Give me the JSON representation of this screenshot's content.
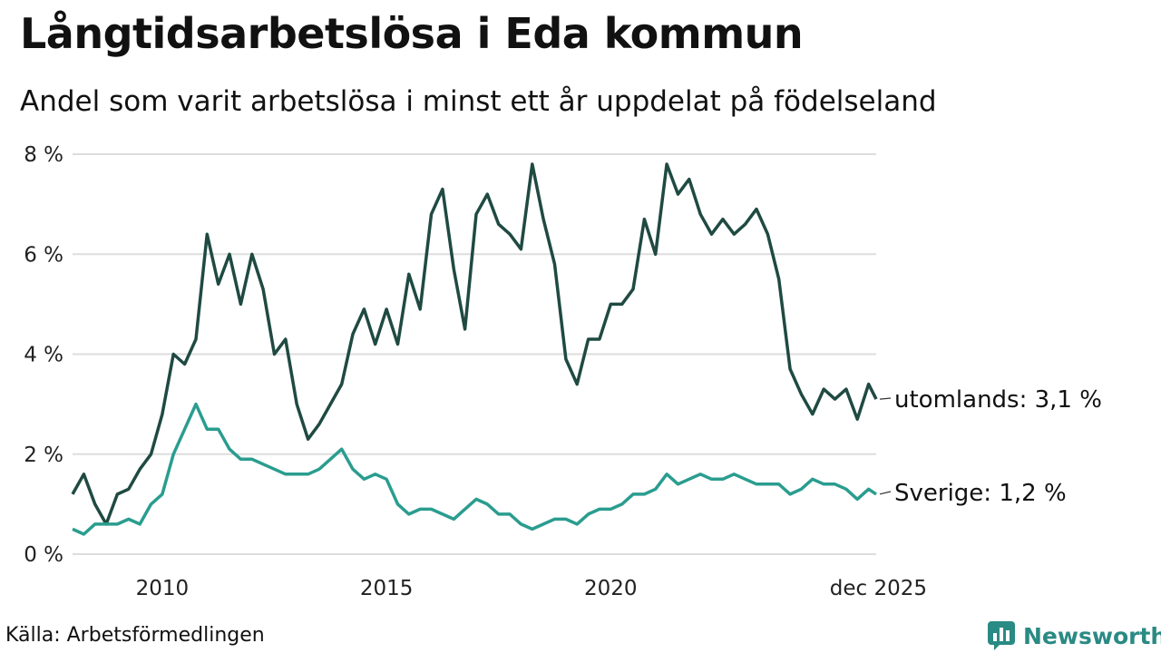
{
  "title": "Långtidsarbetslösa i Eda kommun",
  "subtitle": "Andel som varit arbetslösa i minst ett år uppdelat på födelseland",
  "source": "Källa: Arbetsförmedlingen",
  "brand": "Newsworthy",
  "colors": {
    "utomlands": "#1f4a42",
    "sverige": "#2a9d8f",
    "grid": "#dddddd",
    "brand": "#2a8a84"
  },
  "chart_data": {
    "type": "line",
    "title": "Långtidsarbetslösa i Eda kommun",
    "xlabel": "",
    "ylabel": "",
    "ylim": [
      0,
      8
    ],
    "xlim": [
      2008.0,
      2025.92
    ],
    "yticks": [
      "0 %",
      "2 %",
      "4 %",
      "6 %",
      "8 %"
    ],
    "xticks": [
      {
        "x": 2010,
        "label": "2010"
      },
      {
        "x": 2015,
        "label": "2015"
      },
      {
        "x": 2020,
        "label": "2020"
      },
      {
        "x": 2025.92,
        "label": "dec 2025"
      }
    ],
    "legend_placement": "end-of-line labels",
    "series": [
      {
        "name": "utomlands",
        "end_label": "utomlands: 3,1 %",
        "x": [
          2008.0,
          2008.25,
          2008.5,
          2008.75,
          2009.0,
          2009.25,
          2009.5,
          2009.75,
          2010.0,
          2010.25,
          2010.5,
          2010.75,
          2011.0,
          2011.25,
          2011.5,
          2011.75,
          2012.0,
          2012.25,
          2012.5,
          2012.75,
          2013.0,
          2013.25,
          2013.5,
          2013.75,
          2014.0,
          2014.25,
          2014.5,
          2014.75,
          2015.0,
          2015.25,
          2015.5,
          2015.75,
          2016.0,
          2016.25,
          2016.5,
          2016.75,
          2017.0,
          2017.25,
          2017.5,
          2017.75,
          2018.0,
          2018.25,
          2018.5,
          2018.75,
          2019.0,
          2019.25,
          2019.5,
          2019.75,
          2020.0,
          2020.25,
          2020.5,
          2020.75,
          2021.0,
          2021.25,
          2021.5,
          2021.75,
          2022.0,
          2022.25,
          2022.5,
          2022.75,
          2023.0,
          2023.25,
          2023.5,
          2023.75,
          2024.0,
          2024.25,
          2024.5,
          2024.75,
          2025.0,
          2025.25,
          2025.5,
          2025.75,
          2025.92
        ],
        "values": [
          1.2,
          1.6,
          1.0,
          0.6,
          1.2,
          1.3,
          1.7,
          2.0,
          2.8,
          4.0,
          3.8,
          4.3,
          6.4,
          5.4,
          6.0,
          5.0,
          6.0,
          5.3,
          4.0,
          4.3,
          3.0,
          2.3,
          2.6,
          3.0,
          3.4,
          4.4,
          4.9,
          4.2,
          4.9,
          4.2,
          5.6,
          4.9,
          6.8,
          7.3,
          5.7,
          4.5,
          6.8,
          7.2,
          6.6,
          6.4,
          6.1,
          7.8,
          6.7,
          5.8,
          3.9,
          3.4,
          4.3,
          4.3,
          5.0,
          5.0,
          5.3,
          6.7,
          6.0,
          7.8,
          7.2,
          7.5,
          6.8,
          6.4,
          6.7,
          6.4,
          6.6,
          6.9,
          6.4,
          5.5,
          3.7,
          3.2,
          2.8,
          3.3,
          3.1,
          3.3,
          2.7,
          3.4,
          3.1
        ]
      },
      {
        "name": "Sverige",
        "end_label": "Sverige: 1,2 %",
        "x": [
          2008.0,
          2008.25,
          2008.5,
          2008.75,
          2009.0,
          2009.25,
          2009.5,
          2009.75,
          2010.0,
          2010.25,
          2010.5,
          2010.75,
          2011.0,
          2011.25,
          2011.5,
          2011.75,
          2012.0,
          2012.25,
          2012.5,
          2012.75,
          2013.0,
          2013.25,
          2013.5,
          2013.75,
          2014.0,
          2014.25,
          2014.5,
          2014.75,
          2015.0,
          2015.25,
          2015.5,
          2015.75,
          2016.0,
          2016.25,
          2016.5,
          2016.75,
          2017.0,
          2017.25,
          2017.5,
          2017.75,
          2018.0,
          2018.25,
          2018.5,
          2018.75,
          2019.0,
          2019.25,
          2019.5,
          2019.75,
          2020.0,
          2020.25,
          2020.5,
          2020.75,
          2021.0,
          2021.25,
          2021.5,
          2021.75,
          2022.0,
          2022.25,
          2022.5,
          2022.75,
          2023.0,
          2023.25,
          2023.5,
          2023.75,
          2024.0,
          2024.25,
          2024.5,
          2024.75,
          2025.0,
          2025.25,
          2025.5,
          2025.75,
          2025.92
        ],
        "values": [
          0.5,
          0.4,
          0.6,
          0.6,
          0.6,
          0.7,
          0.6,
          1.0,
          1.2,
          2.0,
          2.5,
          3.0,
          2.5,
          2.5,
          2.1,
          1.9,
          1.9,
          1.8,
          1.7,
          1.6,
          1.6,
          1.6,
          1.7,
          1.9,
          2.1,
          1.7,
          1.5,
          1.6,
          1.5,
          1.0,
          0.8,
          0.9,
          0.9,
          0.8,
          0.7,
          0.9,
          1.1,
          1.0,
          0.8,
          0.8,
          0.6,
          0.5,
          0.6,
          0.7,
          0.7,
          0.6,
          0.8,
          0.9,
          0.9,
          1.0,
          1.2,
          1.2,
          1.3,
          1.6,
          1.4,
          1.5,
          1.6,
          1.5,
          1.5,
          1.6,
          1.5,
          1.4,
          1.4,
          1.4,
          1.2,
          1.3,
          1.5,
          1.4,
          1.4,
          1.3,
          1.1,
          1.3,
          1.2
        ]
      }
    ]
  }
}
